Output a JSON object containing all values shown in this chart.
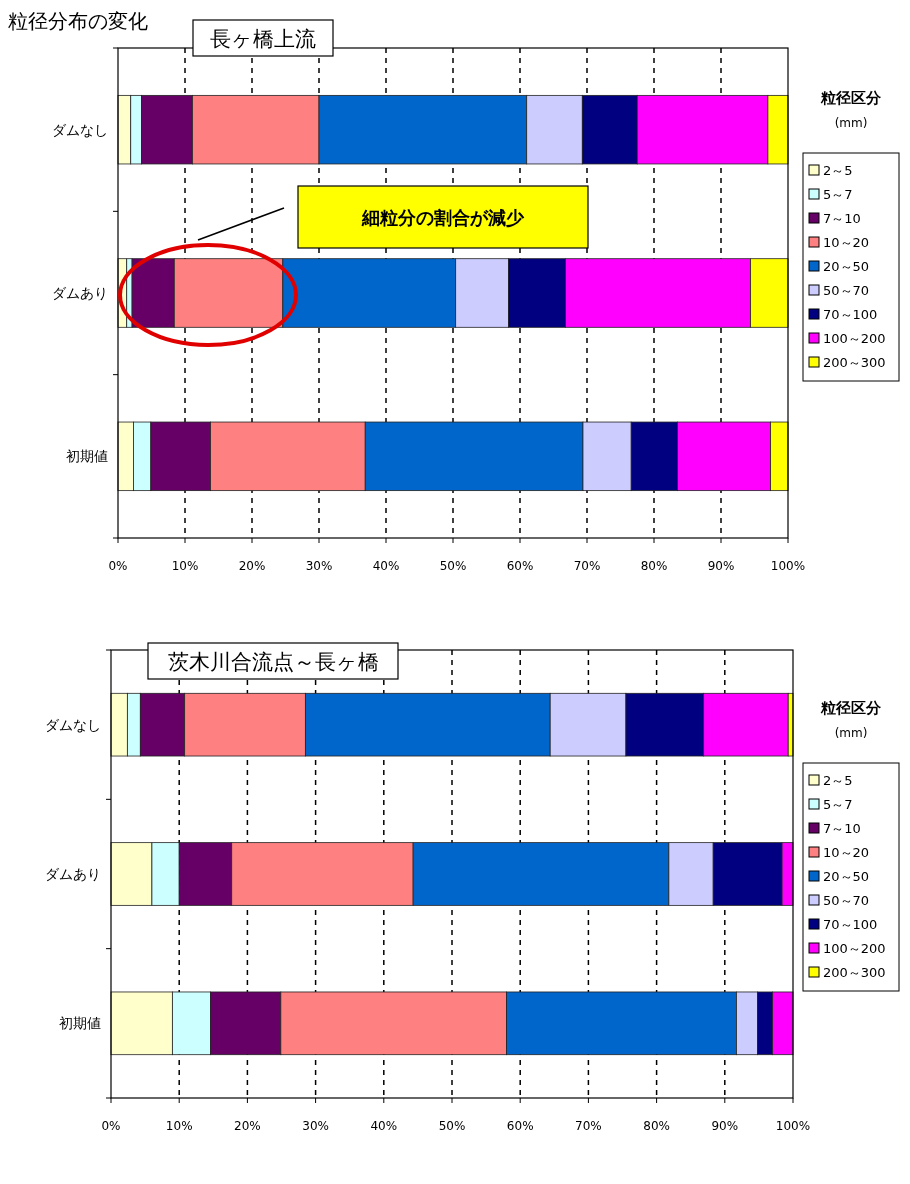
{
  "chart_data": [
    {
      "type": "bar",
      "orientation": "horizontal",
      "stacked": true,
      "title": "長ヶ橋上流",
      "annotations": [
        "粒径分布の変化",
        "細粒分の割合が減少"
      ],
      "categories": [
        "ダムなし",
        "ダムあり",
        "初期値"
      ],
      "series": [
        {
          "name": "2～5",
          "color": "#ffffcc",
          "values": [
            1.9,
            1.3,
            2.3
          ]
        },
        {
          "name": "5～7",
          "color": "#ccffff",
          "values": [
            1.6,
            0.8,
            2.6
          ]
        },
        {
          "name": "7～10",
          "color": "#660066",
          "values": [
            7.6,
            6.3,
            8.9
          ]
        },
        {
          "name": "10～20",
          "color": "#ff8080",
          "values": [
            18.9,
            16.2,
            23.1
          ]
        },
        {
          "name": "20～50",
          "color": "#0066cc",
          "values": [
            31.0,
            25.8,
            32.5
          ]
        },
        {
          "name": "50～70",
          "color": "#ccccff",
          "values": [
            8.3,
            7.9,
            7.2
          ]
        },
        {
          "name": "70～100",
          "color": "#000080",
          "values": [
            8.2,
            8.5,
            6.9
          ]
        },
        {
          "name": "100～200",
          "color": "#ff00ff",
          "values": [
            19.5,
            27.6,
            13.9
          ]
        },
        {
          "name": "200～300",
          "color": "#ffff00",
          "values": [
            3.0,
            5.6,
            2.6
          ]
        }
      ],
      "xlim": [
        0,
        100
      ],
      "xticks": [
        {
          "value": 0,
          "label": "0%"
        },
        {
          "value": 10,
          "label": "10%"
        },
        {
          "value": 20,
          "label": "20%"
        },
        {
          "value": 30,
          "label": "30%"
        },
        {
          "value": 40,
          "label": "40%"
        },
        {
          "value": 50,
          "label": "50%"
        },
        {
          "value": 60,
          "label": "60%"
        },
        {
          "value": 70,
          "label": "70%"
        },
        {
          "value": 80,
          "label": "80%"
        },
        {
          "value": 90,
          "label": "90%"
        },
        {
          "value": 100,
          "label": "100%"
        }
      ],
      "grid": "x",
      "legend": "right",
      "legend_title": "粒径区分\n(mm)"
    },
    {
      "type": "bar",
      "orientation": "horizontal",
      "stacked": true,
      "title": "茨木川合流点～長ヶ橋",
      "categories": [
        "ダムなし",
        "ダムあり",
        "初期値"
      ],
      "series": [
        {
          "name": "2～5",
          "color": "#ffffcc",
          "values": [
            2.4,
            6.0,
            9.0
          ]
        },
        {
          "name": "5～7",
          "color": "#ccffff",
          "values": [
            1.9,
            4.0,
            5.6
          ]
        },
        {
          "name": "7～10",
          "color": "#660066",
          "values": [
            6.5,
            7.7,
            10.3
          ]
        },
        {
          "name": "10～20",
          "color": "#ff8080",
          "values": [
            17.7,
            26.6,
            33.1
          ]
        },
        {
          "name": "20～50",
          "color": "#0066cc",
          "values": [
            35.9,
            37.5,
            33.7
          ]
        },
        {
          "name": "50～70",
          "color": "#ccccff",
          "values": [
            11.1,
            6.5,
            3.1
          ]
        },
        {
          "name": "70～100",
          "color": "#000080",
          "values": [
            11.4,
            10.1,
            2.2
          ]
        },
        {
          "name": "100～200",
          "color": "#ff00ff",
          "values": [
            12.4,
            1.6,
            3.0
          ]
        },
        {
          "name": "200～300",
          "color": "#ffff00",
          "values": [
            0.7,
            0,
            0
          ]
        }
      ],
      "xlim": [
        0,
        100
      ],
      "xticks": [
        {
          "value": 0,
          "label": "0%"
        },
        {
          "value": 10,
          "label": "10%"
        },
        {
          "value": 20,
          "label": "20%"
        },
        {
          "value": 30,
          "label": "30%"
        },
        {
          "value": 40,
          "label": "40%"
        },
        {
          "value": 50,
          "label": "50%"
        },
        {
          "value": 60,
          "label": "60%"
        },
        {
          "value": 70,
          "label": "70%"
        },
        {
          "value": 80,
          "label": "80%"
        },
        {
          "value": 90,
          "label": "90%"
        },
        {
          "value": 100,
          "label": "100%"
        }
      ],
      "grid": "x",
      "legend": "right",
      "legend_title": "粒径区分\n(mm)"
    }
  ]
}
